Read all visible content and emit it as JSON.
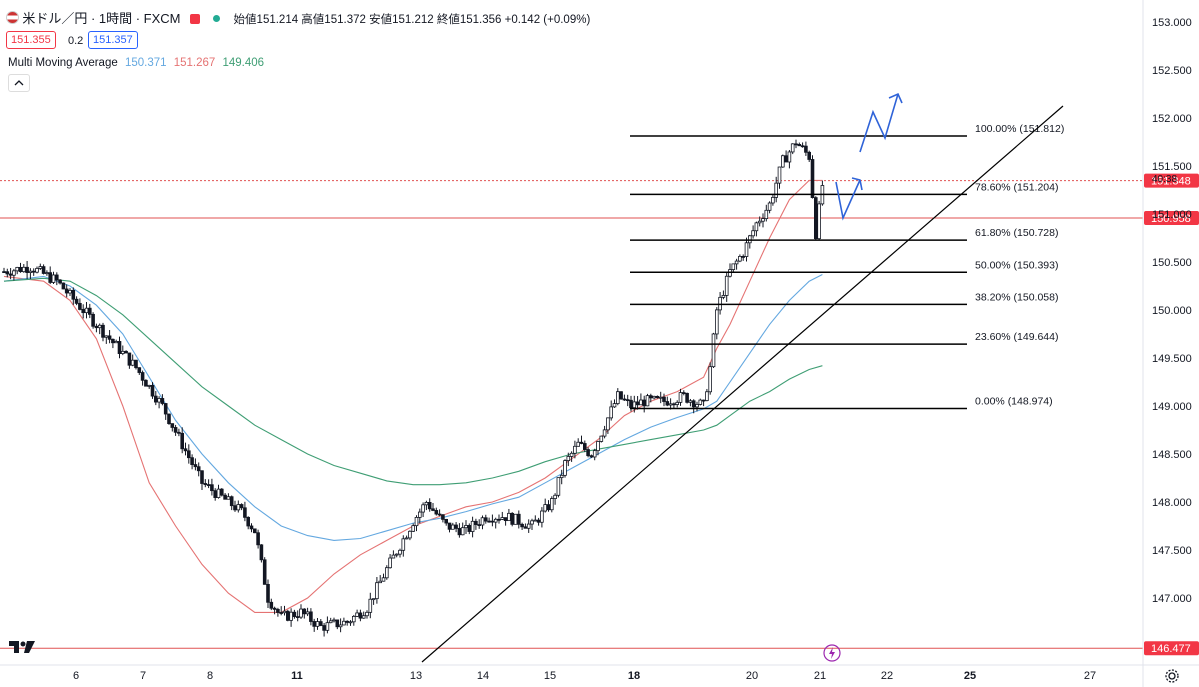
{
  "header": {
    "symbol": "米ドル／円 · 1時間 · FXCM",
    "ohlc": "始値151.214 高値151.372 安値151.212 終値151.356 +0.142 (+0.09%)",
    "bid": "151.355",
    "spread": "0.2",
    "ask": "151.357",
    "indicator_name": "Multi Moving Average",
    "ma_values": [
      "150.371",
      "151.267",
      "149.406"
    ],
    "countdown": "40:38"
  },
  "colors": {
    "up": "#131722",
    "ma_fast": "#e57373",
    "ma_mid": "#64a8e0",
    "ma_slow": "#3f9e74",
    "red_line": "#e05252",
    "arrow": "#2f63d8",
    "fib_line": "#000000"
  },
  "chart_data": {
    "type": "candlestick",
    "y_range": [
      146.4,
      153.1
    ],
    "y_ticks": [
      "153.000",
      "152.500",
      "152.000",
      "151.500",
      "151.000",
      "150.500",
      "150.000",
      "149.500",
      "149.000",
      "148.500",
      "148.000",
      "147.500",
      "147.000"
    ],
    "x_ticks": [
      "6",
      "7",
      "8",
      "11",
      "13",
      "14",
      "15",
      "18",
      "20",
      "21",
      "22",
      "25",
      "27"
    ],
    "x_ticks_bold": [
      "11",
      "18",
      "25"
    ],
    "price_levels": [
      {
        "label": "151.348",
        "value": 151.348,
        "style": "dotted"
      },
      {
        "label": "150.958",
        "value": 150.958,
        "style": "solid"
      },
      {
        "label": "146.477",
        "value": 146.477,
        "style": "solid"
      }
    ],
    "fibonacci": [
      {
        "label": "100.00% (151.812)",
        "value": 151.812
      },
      {
        "label": "78.60% (151.204)",
        "value": 151.204
      },
      {
        "label": "61.80% (150.728)",
        "value": 150.728
      },
      {
        "label": "50.00% (150.393)",
        "value": 150.393
      },
      {
        "label": "38.20% (150.058)",
        "value": 150.058
      },
      {
        "label": "23.60% (149.644)",
        "value": 149.644
      },
      {
        "label": "0.00% (148.974)",
        "value": 148.974
      }
    ],
    "price_path": [
      [
        0,
        150.4
      ],
      [
        4,
        150.45
      ],
      [
        8,
        150.3
      ],
      [
        12,
        150.0
      ],
      [
        16,
        149.7
      ],
      [
        20,
        149.4
      ],
      [
        24,
        149.0
      ],
      [
        27,
        148.6
      ],
      [
        30,
        148.2
      ],
      [
        33,
        148.05
      ],
      [
        36,
        147.9
      ],
      [
        38,
        147.7
      ],
      [
        40,
        147.0
      ],
      [
        42,
        146.8
      ],
      [
        45,
        146.85
      ],
      [
        48,
        146.7
      ],
      [
        52,
        146.75
      ],
      [
        55,
        146.9
      ],
      [
        58,
        147.3
      ],
      [
        60,
        147.55
      ],
      [
        62,
        147.8
      ],
      [
        64,
        148.0
      ],
      [
        67,
        147.75
      ],
      [
        70,
        147.7
      ],
      [
        73,
        147.85
      ],
      [
        76,
        147.85
      ],
      [
        80,
        147.75
      ],
      [
        83,
        148.0
      ],
      [
        85,
        148.4
      ],
      [
        87,
        148.6
      ],
      [
        89,
        148.5
      ],
      [
        91,
        148.8
      ],
      [
        93,
        149.1
      ],
      [
        95,
        149.0
      ],
      [
        97,
        149.05
      ],
      [
        100,
        149.05
      ],
      [
        103,
        149.1
      ],
      [
        106,
        149.0
      ],
      [
        107,
        149.4
      ],
      [
        108,
        150.0
      ],
      [
        110,
        150.4
      ],
      [
        112,
        150.6
      ],
      [
        114,
        150.9
      ],
      [
        116,
        151.1
      ],
      [
        118,
        151.55
      ],
      [
        120,
        151.75
      ],
      [
        122,
        151.6
      ],
      [
        123,
        150.8
      ],
      [
        124,
        151.3
      ]
    ],
    "moving_averages": [
      {
        "name": "MA1",
        "points": [
          [
            0,
            150.35
          ],
          [
            6,
            150.3
          ],
          [
            10,
            150.1
          ],
          [
            14,
            149.7
          ],
          [
            18,
            149.0
          ],
          [
            22,
            148.2
          ],
          [
            26,
            147.75
          ],
          [
            30,
            147.35
          ],
          [
            34,
            147.05
          ],
          [
            38,
            146.85
          ],
          [
            42,
            146.85
          ],
          [
            46,
            147.0
          ],
          [
            50,
            147.25
          ],
          [
            54,
            147.45
          ],
          [
            58,
            147.6
          ],
          [
            62,
            147.75
          ],
          [
            66,
            147.85
          ],
          [
            70,
            147.95
          ],
          [
            74,
            148.0
          ],
          [
            78,
            148.1
          ],
          [
            82,
            148.25
          ],
          [
            86,
            148.45
          ],
          [
            90,
            148.65
          ],
          [
            94,
            148.9
          ],
          [
            98,
            149.05
          ],
          [
            102,
            149.15
          ],
          [
            106,
            149.3
          ],
          [
            108,
            149.6
          ],
          [
            110,
            149.85
          ],
          [
            113,
            150.3
          ],
          [
            116,
            150.75
          ],
          [
            119,
            151.15
          ],
          [
            122,
            151.35
          ],
          [
            124,
            151.35
          ]
        ]
      },
      {
        "name": "MA2",
        "points": [
          [
            0,
            150.3
          ],
          [
            6,
            150.35
          ],
          [
            10,
            150.25
          ],
          [
            14,
            150.05
          ],
          [
            18,
            149.75
          ],
          [
            22,
            149.3
          ],
          [
            26,
            148.85
          ],
          [
            30,
            148.5
          ],
          [
            34,
            148.2
          ],
          [
            38,
            147.95
          ],
          [
            42,
            147.75
          ],
          [
            46,
            147.65
          ],
          [
            50,
            147.6
          ],
          [
            54,
            147.62
          ],
          [
            58,
            147.7
          ],
          [
            62,
            147.78
          ],
          [
            66,
            147.83
          ],
          [
            70,
            147.9
          ],
          [
            74,
            147.98
          ],
          [
            78,
            148.05
          ],
          [
            82,
            148.2
          ],
          [
            86,
            148.35
          ],
          [
            90,
            148.5
          ],
          [
            94,
            148.65
          ],
          [
            98,
            148.78
          ],
          [
            102,
            148.88
          ],
          [
            106,
            148.97
          ],
          [
            108,
            149.05
          ],
          [
            110,
            149.25
          ],
          [
            113,
            149.55
          ],
          [
            116,
            149.85
          ],
          [
            119,
            150.1
          ],
          [
            122,
            150.3
          ],
          [
            124,
            150.37
          ]
        ]
      },
      {
        "name": "MA3",
        "points": [
          [
            0,
            150.3
          ],
          [
            6,
            150.33
          ],
          [
            10,
            150.3
          ],
          [
            14,
            150.15
          ],
          [
            18,
            149.95
          ],
          [
            22,
            149.7
          ],
          [
            26,
            149.45
          ],
          [
            30,
            149.2
          ],
          [
            34,
            149.0
          ],
          [
            38,
            148.8
          ],
          [
            42,
            148.65
          ],
          [
            46,
            148.5
          ],
          [
            50,
            148.38
          ],
          [
            54,
            148.3
          ],
          [
            58,
            148.22
          ],
          [
            62,
            148.18
          ],
          [
            66,
            148.18
          ],
          [
            70,
            148.2
          ],
          [
            74,
            148.25
          ],
          [
            78,
            148.32
          ],
          [
            82,
            148.42
          ],
          [
            86,
            148.5
          ],
          [
            90,
            148.55
          ],
          [
            94,
            148.6
          ],
          [
            98,
            148.65
          ],
          [
            102,
            148.7
          ],
          [
            106,
            148.75
          ],
          [
            108,
            148.8
          ],
          [
            110,
            148.9
          ],
          [
            113,
            149.05
          ],
          [
            116,
            149.15
          ],
          [
            119,
            149.28
          ],
          [
            122,
            149.38
          ],
          [
            124,
            149.42
          ]
        ]
      }
    ],
    "trendline": {
      "from": [
        62,
        146.45
      ],
      "to": [
        156,
        152.05
      ]
    }
  }
}
